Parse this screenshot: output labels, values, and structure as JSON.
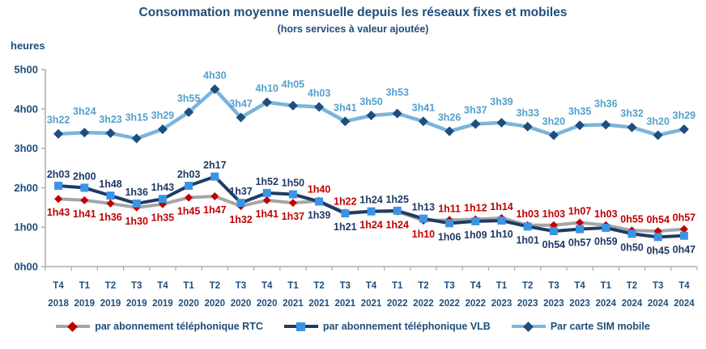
{
  "header": {
    "title": "Consommation moyenne mensuelle depuis les réseaux fixes et mobiles",
    "subtitle": "(hors services à valeur ajoutée)"
  },
  "chart_data": {
    "type": "line",
    "title": "Consommation moyenne mensuelle depuis les réseaux fixes et mobiles",
    "subtitle": "(hors services à valeur ajoutée)",
    "y_axis_title": "heures",
    "y_ticks": [
      "0h00",
      "1h00",
      "2h00",
      "3h00",
      "4h00",
      "5h00"
    ],
    "ylim_hours": [
      0,
      5
    ],
    "grid": false,
    "legend_position": "bottom",
    "axis_color": "#ABABAB",
    "tick_label_color": "#1F4E79",
    "x_quarters": [
      "T4",
      "T1",
      "T2",
      "T3",
      "T4",
      "T1",
      "T2",
      "T3",
      "T4",
      "T1",
      "T2",
      "T3",
      "T4",
      "T1",
      "T2",
      "T3",
      "T4",
      "T1",
      "T2",
      "T3",
      "T4",
      "T1",
      "T2",
      "T3",
      "T4"
    ],
    "x_years": [
      "2018",
      "2019",
      "2019",
      "2019",
      "2019",
      "2020",
      "2020",
      "2020",
      "2020",
      "2021",
      "2021",
      "2021",
      "2021",
      "2022",
      "2022",
      "2022",
      "2022",
      "2023",
      "2023",
      "2023",
      "2023",
      "2024",
      "2024",
      "2024",
      "2024"
    ],
    "series": [
      {
        "key": "rtc",
        "name": "par abonnement téléphonique RTC",
        "marker": "diamond",
        "line_color": "#A5A5A5",
        "marker_color": "#C00000",
        "label_color": "#C00000",
        "values": [
          "1h43",
          "1h41",
          "1h36",
          "1h30",
          "1h35",
          "1h45",
          "1h47",
          "1h32",
          "1h41",
          "1h37",
          "1h40",
          "1h22",
          "1h24",
          "1h24",
          "1h10",
          "1h11",
          "1h12",
          "1h14",
          "1h03",
          "1h03",
          "1h07",
          "1h03",
          "0h55",
          "0h54",
          "0h57"
        ]
      },
      {
        "key": "vlb",
        "name": "par abonnement téléphonique VLB",
        "marker": "square",
        "line_color": "#1E3C64",
        "marker_color": "#3A94E4",
        "label_color": "#1F3864",
        "values": [
          "2h03",
          "2h00",
          "1h48",
          "1h36",
          "1h43",
          "2h03",
          "2h17",
          "1h37",
          "1h52",
          "1h50",
          "1h39",
          "1h21",
          "1h24",
          "1h25",
          "1h13",
          "1h06",
          "1h09",
          "1h10",
          "1h01",
          "0h54",
          "0h57",
          "0h59",
          "0h50",
          "0h45",
          "0h47"
        ]
      },
      {
        "key": "sim",
        "name": "Par carte SIM mobile",
        "marker": "diamond",
        "line_color": "#7BB4DA",
        "marker_color": "#1C4E7E",
        "label_color": "#55A0CC",
        "values": [
          "3h22",
          "3h24",
          "3h23",
          "3h15",
          "3h29",
          "3h55",
          "4h30",
          "3h47",
          "4h10",
          "4h05",
          "4h03",
          "3h41",
          "3h50",
          "3h53",
          "3h41",
          "3h26",
          "3h37",
          "3h39",
          "3h33",
          "3h20",
          "3h35",
          "3h36",
          "3h32",
          "3h20",
          "3h29"
        ]
      }
    ]
  }
}
